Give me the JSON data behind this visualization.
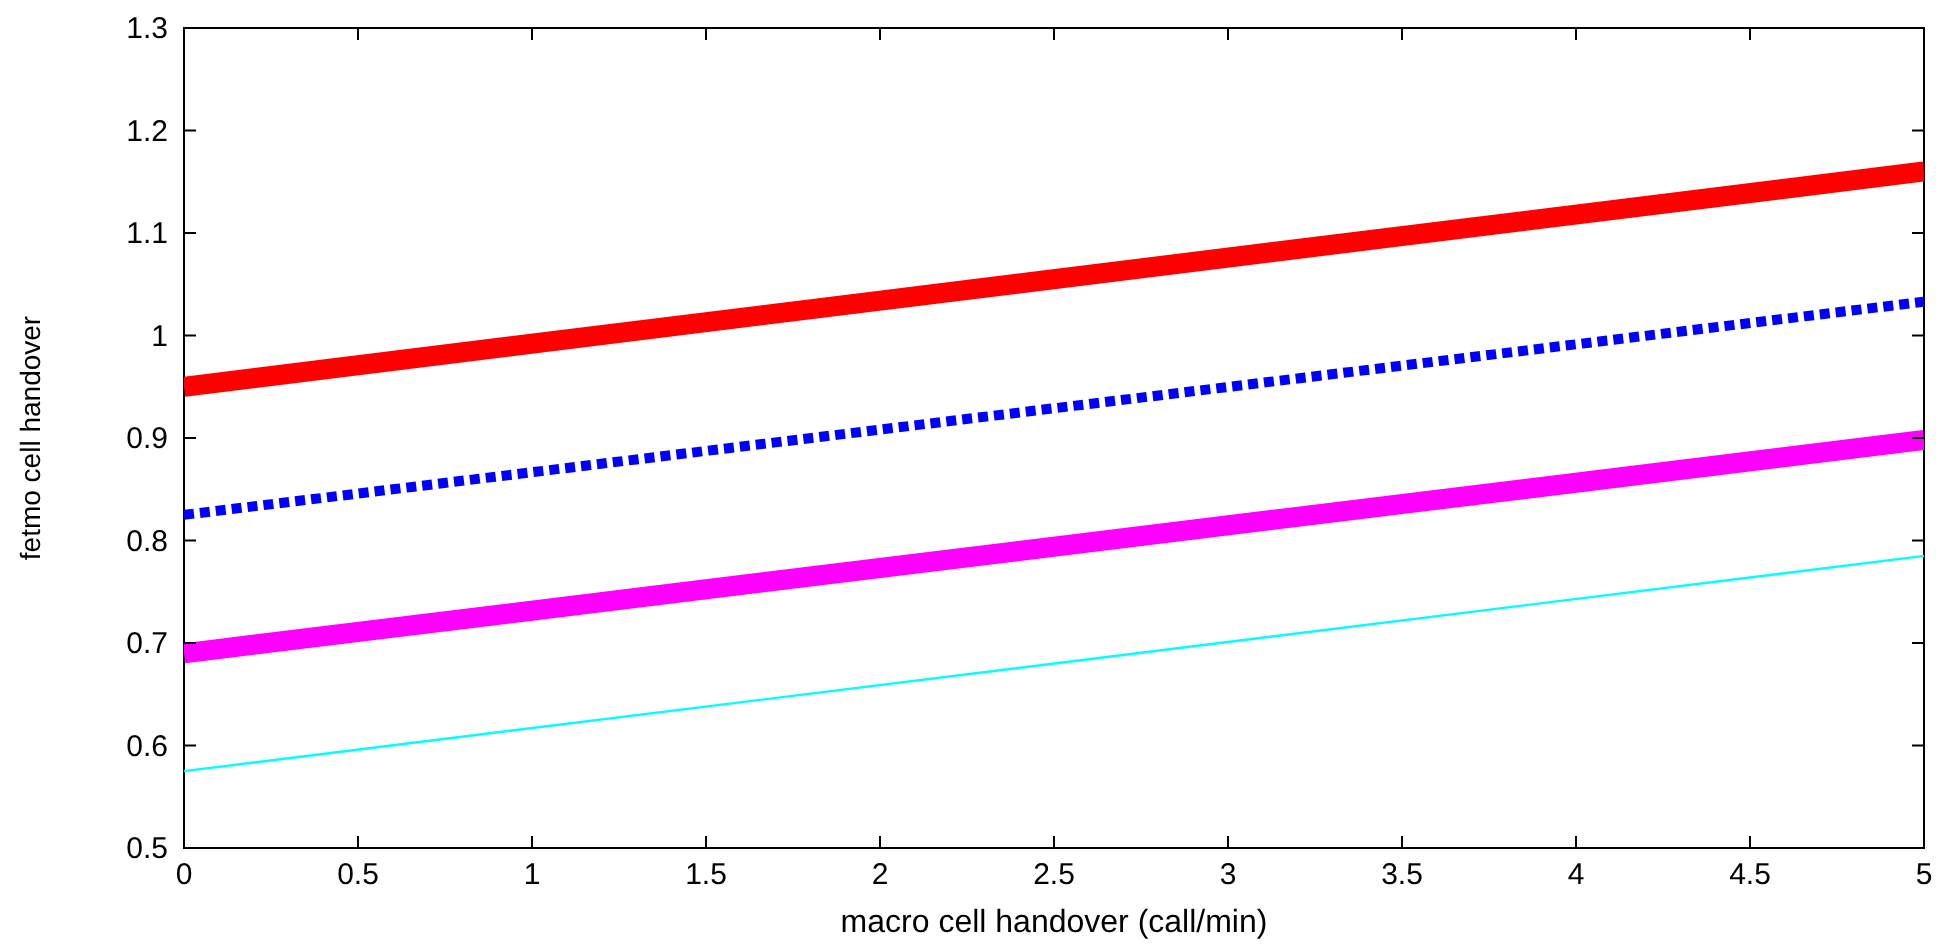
{
  "chart_data": {
    "type": "line",
    "xlabel": "macro cell handover (call/min)",
    "ylabel": "fetmo cell handover",
    "x": [
      0,
      5
    ],
    "series": [
      {
        "color": "#ff0000",
        "values": [
          0.95,
          1.16
        ],
        "line_style": "solid"
      },
      {
        "color": "#0000ff",
        "values": [
          0.825,
          1.033
        ],
        "line_style": "dotted"
      },
      {
        "color": "#ff00ff",
        "values": [
          0.69,
          0.898
        ],
        "line_style": "solid"
      },
      {
        "color": "#00ffff",
        "values": [
          0.575,
          0.785
        ],
        "line_style": "solid"
      }
    ],
    "xlim": [
      0,
      5
    ],
    "ylim": [
      0.5,
      1.3
    ],
    "xticks": [
      0,
      0.5,
      1,
      1.5,
      2,
      2.5,
      3,
      3.5,
      4,
      4.5,
      5
    ],
    "yticks": [
      0.5,
      0.6,
      0.7,
      0.8,
      0.9,
      1,
      1.1,
      1.2,
      1.3
    ],
    "grid": false,
    "marker": "none"
  }
}
